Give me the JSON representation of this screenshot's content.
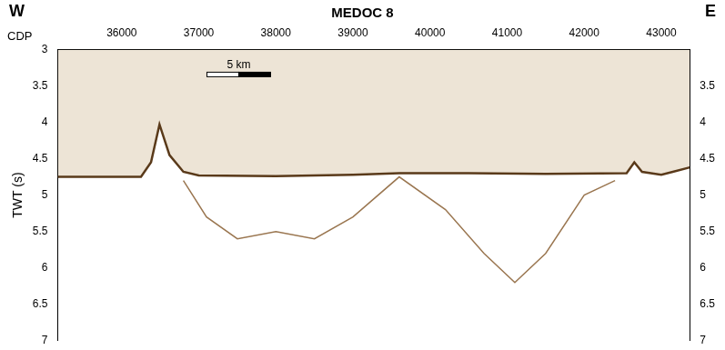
{
  "chart_data": {
    "type": "line",
    "title": "MEDOC 8",
    "annotations": [
      "W",
      "E",
      "5 km"
    ],
    "x_label": "CDP",
    "y_label": "TWT (s)",
    "xlim": [
      35170,
      43370
    ],
    "xticks": [
      36000,
      37000,
      38000,
      39000,
      40000,
      41000,
      42000,
      43000
    ],
    "ylim": [
      7,
      3
    ],
    "yticks": [
      3,
      3.5,
      4,
      4.5,
      5,
      5.5,
      6,
      6.5,
      7
    ],
    "y2lim": [
      7,
      3
    ],
    "y2ticks": [
      3.5,
      4,
      4.5,
      5,
      5.5,
      6,
      6.5,
      7
    ],
    "grid": false,
    "series": [
      {
        "color": "#5a3a1a",
        "x": [
          35170,
          36250,
          36380,
          36490,
          36620,
          36800,
          37000,
          38000,
          39000,
          39600,
          40500,
          41500,
          42550,
          42650,
          42750,
          43000,
          43150,
          43370
        ],
        "values": [
          4.75,
          4.75,
          4.55,
          4.03,
          4.45,
          4.68,
          4.73,
          4.74,
          4.72,
          4.7,
          4.7,
          4.71,
          4.7,
          4.55,
          4.68,
          4.72,
          4.68,
          4.62
        ]
      },
      {
        "color": "#9a7650",
        "x": [
          36800,
          37100,
          37500,
          38000,
          38500,
          39000,
          39600,
          40200,
          40700,
          41100,
          41500,
          42000,
          42400
        ],
        "values": [
          4.8,
          5.3,
          5.6,
          5.5,
          5.6,
          5.3,
          4.75,
          5.2,
          5.8,
          6.2,
          5.8,
          5.0,
          4.8
        ],
        "axis": "y"
      }
    ]
  }
}
